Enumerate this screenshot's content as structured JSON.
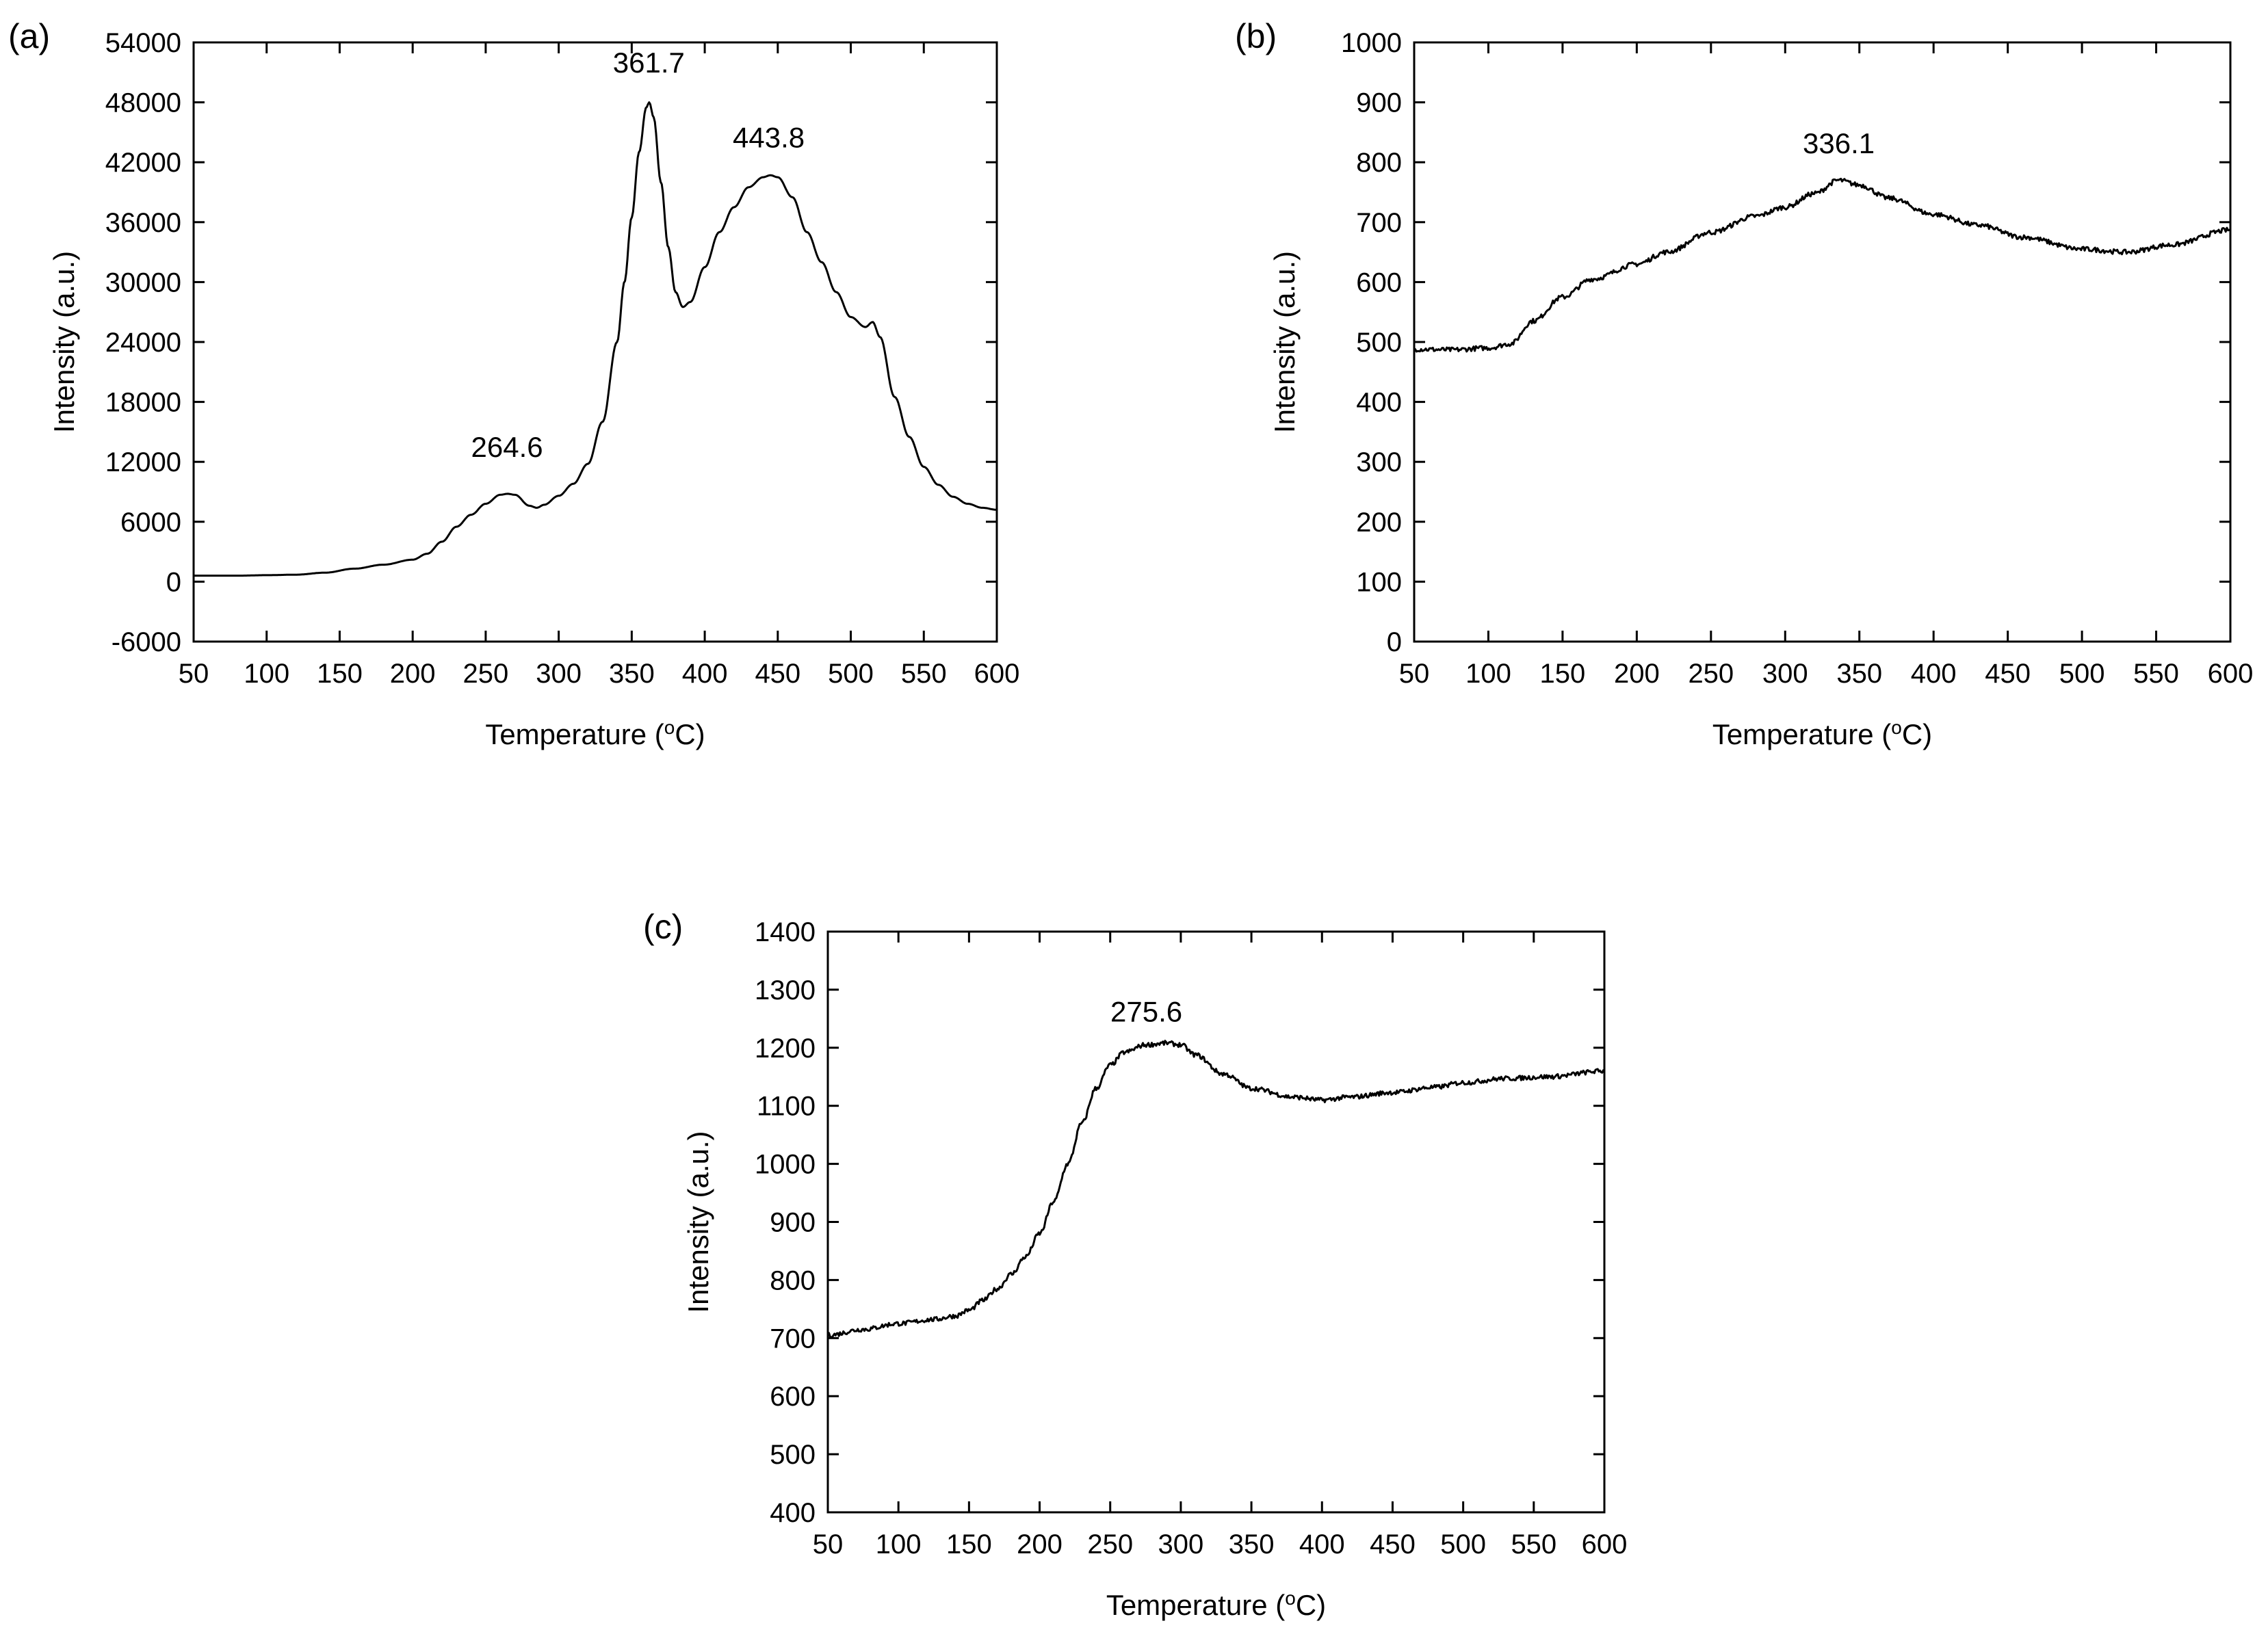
{
  "chart_data": [
    {
      "type": "line",
      "panel_label": "(a)",
      "xlabel": "Temperature (",
      "xlabel_sup": "o",
      "xlabel_unit": "C)",
      "ylabel": "Intensity (a.u.)",
      "xlim": [
        50,
        600
      ],
      "ylim": [
        -6000,
        54000
      ],
      "xticks": [
        "50",
        "100",
        "150",
        "200",
        "250",
        "300",
        "350",
        "400",
        "450",
        "500",
        "550",
        "600"
      ],
      "yticks": [
        "-6000",
        "0",
        "6000",
        "12000",
        "18000",
        "24000",
        "30000",
        "36000",
        "42000",
        "48000",
        "54000"
      ],
      "annotations": [
        {
          "text": "264.6",
          "x": 264.6,
          "y": 12500
        },
        {
          "text": "361.7",
          "x": 361.7,
          "y": 51000
        },
        {
          "text": "443.8",
          "x": 443.8,
          "y": 43500
        }
      ],
      "series": [
        {
          "name": "(a)",
          "x": [
            50,
            80,
            100,
            120,
            140,
            160,
            180,
            200,
            210,
            220,
            230,
            240,
            250,
            260,
            265,
            270,
            280,
            285,
            290,
            300,
            310,
            320,
            330,
            340,
            345,
            350,
            355,
            360,
            362,
            365,
            370,
            375,
            380,
            385,
            390,
            400,
            410,
            420,
            430,
            440,
            445,
            450,
            460,
            470,
            480,
            490,
            500,
            510,
            515,
            520,
            530,
            540,
            550,
            560,
            570,
            580,
            590,
            600
          ],
          "values": [
            600,
            600,
            650,
            700,
            900,
            1300,
            1700,
            2200,
            2800,
            4000,
            5500,
            6700,
            7800,
            8700,
            8800,
            8700,
            7600,
            7400,
            7700,
            8600,
            9800,
            11800,
            16000,
            24000,
            30000,
            36500,
            43000,
            47500,
            48000,
            46500,
            40000,
            33500,
            29000,
            27500,
            28000,
            31500,
            35000,
            37500,
            39500,
            40500,
            40700,
            40500,
            38500,
            35000,
            32000,
            29000,
            26500,
            25500,
            26000,
            24500,
            18500,
            14500,
            11500,
            9700,
            8500,
            7800,
            7400,
            7200
          ]
        }
      ]
    },
    {
      "type": "line",
      "panel_label": "(b)",
      "xlabel": "Temperature (",
      "xlabel_sup": "o",
      "xlabel_unit": "C)",
      "ylabel": "Intensity (a.u.)",
      "xlim": [
        50,
        600
      ],
      "ylim": [
        0,
        1000
      ],
      "xticks": [
        "50",
        "100",
        "150",
        "200",
        "250",
        "300",
        "350",
        "400",
        "450",
        "500",
        "550",
        "600"
      ],
      "yticks": [
        "0",
        "100",
        "200",
        "300",
        "400",
        "500",
        "600",
        "700",
        "800",
        "900",
        "1000"
      ],
      "annotations": [
        {
          "text": "336.1",
          "x": 336.1,
          "y": 815
        }
      ],
      "series": [
        {
          "name": "(b)",
          "x": [
            50,
            75,
            100,
            115,
            130,
            150,
            170,
            200,
            220,
            250,
            280,
            300,
            320,
            336,
            350,
            370,
            400,
            430,
            460,
            500,
            530,
            560,
            600
          ],
          "values": [
            488,
            487,
            490,
            497,
            535,
            575,
            605,
            630,
            650,
            683,
            710,
            725,
            748,
            770,
            762,
            740,
            713,
            695,
            675,
            655,
            650,
            662,
            687
          ]
        }
      ]
    },
    {
      "type": "line",
      "panel_label": "(c)",
      "xlabel": "Temperature (",
      "xlabel_sup": "o",
      "xlabel_unit": "C)",
      "ylabel": "Intensity (a.u.)",
      "xlim": [
        50,
        600
      ],
      "ylim": [
        400,
        1400
      ],
      "xticks": [
        "50",
        "100",
        "150",
        "200",
        "250",
        "300",
        "350",
        "400",
        "450",
        "500",
        "550",
        "600"
      ],
      "yticks": [
        "400",
        "500",
        "600",
        "700",
        "800",
        "900",
        "1000",
        "1100",
        "1200",
        "1300",
        "1400"
      ],
      "annotations": [
        {
          "text": "275.6",
          "x": 275.6,
          "y": 1245
        }
      ],
      "series": [
        {
          "name": "(c)",
          "x": [
            50,
            75,
            100,
            125,
            140,
            150,
            160,
            170,
            180,
            190,
            200,
            210,
            220,
            230,
            240,
            250,
            260,
            275,
            290,
            300,
            310,
            330,
            350,
            380,
            400,
            420,
            450,
            480,
            500,
            530,
            560,
            600
          ],
          "values": [
            705,
            715,
            725,
            732,
            738,
            748,
            765,
            785,
            810,
            840,
            880,
            935,
            1000,
            1070,
            1130,
            1170,
            1192,
            1205,
            1208,
            1205,
            1188,
            1155,
            1130,
            1115,
            1110,
            1115,
            1123,
            1132,
            1140,
            1147,
            1150,
            1160
          ]
        }
      ]
    }
  ]
}
